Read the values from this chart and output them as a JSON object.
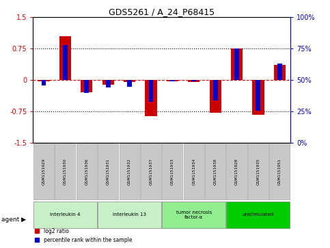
{
  "title": "GDS5261 / A_24_P68415",
  "samples": [
    "GSM1151929",
    "GSM1151930",
    "GSM1151936",
    "GSM1151931",
    "GSM1151932",
    "GSM1151937",
    "GSM1151933",
    "GSM1151934",
    "GSM1151938",
    "GSM1151928",
    "GSM1151935",
    "GSM1151951"
  ],
  "log2_ratio": [
    -0.03,
    1.05,
    -0.28,
    -0.1,
    -0.04,
    -0.85,
    -0.03,
    -0.05,
    -0.77,
    0.75,
    -0.82,
    0.37
  ],
  "percentile": [
    46,
    78,
    40,
    44,
    45,
    33,
    49,
    49,
    34,
    75,
    26,
    63
  ],
  "groups": [
    {
      "label": "interleukin 4",
      "start": 0,
      "end": 2,
      "color": "#c8f0c8"
    },
    {
      "label": "interleukin 13",
      "start": 3,
      "end": 5,
      "color": "#c8f0c8"
    },
    {
      "label": "tumor necrosis\nfactor-α",
      "start": 6,
      "end": 8,
      "color": "#90ee90"
    },
    {
      "label": "unstimulated",
      "start": 9,
      "end": 11,
      "color": "#00cc00"
    }
  ],
  "ylim_left": [
    -1.5,
    1.5
  ],
  "ylim_right": [
    0,
    100
  ],
  "yticks_left": [
    -1.5,
    -0.75,
    0,
    0.75,
    1.5
  ],
  "yticks_right": [
    0,
    25,
    50,
    75,
    100
  ],
  "ytick_labels_left": [
    "-1.5",
    "-0.75",
    "0",
    "0.75",
    "1.5"
  ],
  "ytick_labels_right": [
    "0%",
    "25%",
    "50%",
    "75%",
    "100%"
  ],
  "hlines": [
    0.75,
    -0.75
  ],
  "zero_line": 0,
  "red_color": "#cc0000",
  "blue_color": "#0000cc",
  "background_color": "#ffffff",
  "agent_label": "agent",
  "legend_red": "log2 ratio",
  "legend_blue": "percentile rank within the sample",
  "gray_box_color": "#c8c8c8",
  "gray_box_edge": "#aaaaaa"
}
